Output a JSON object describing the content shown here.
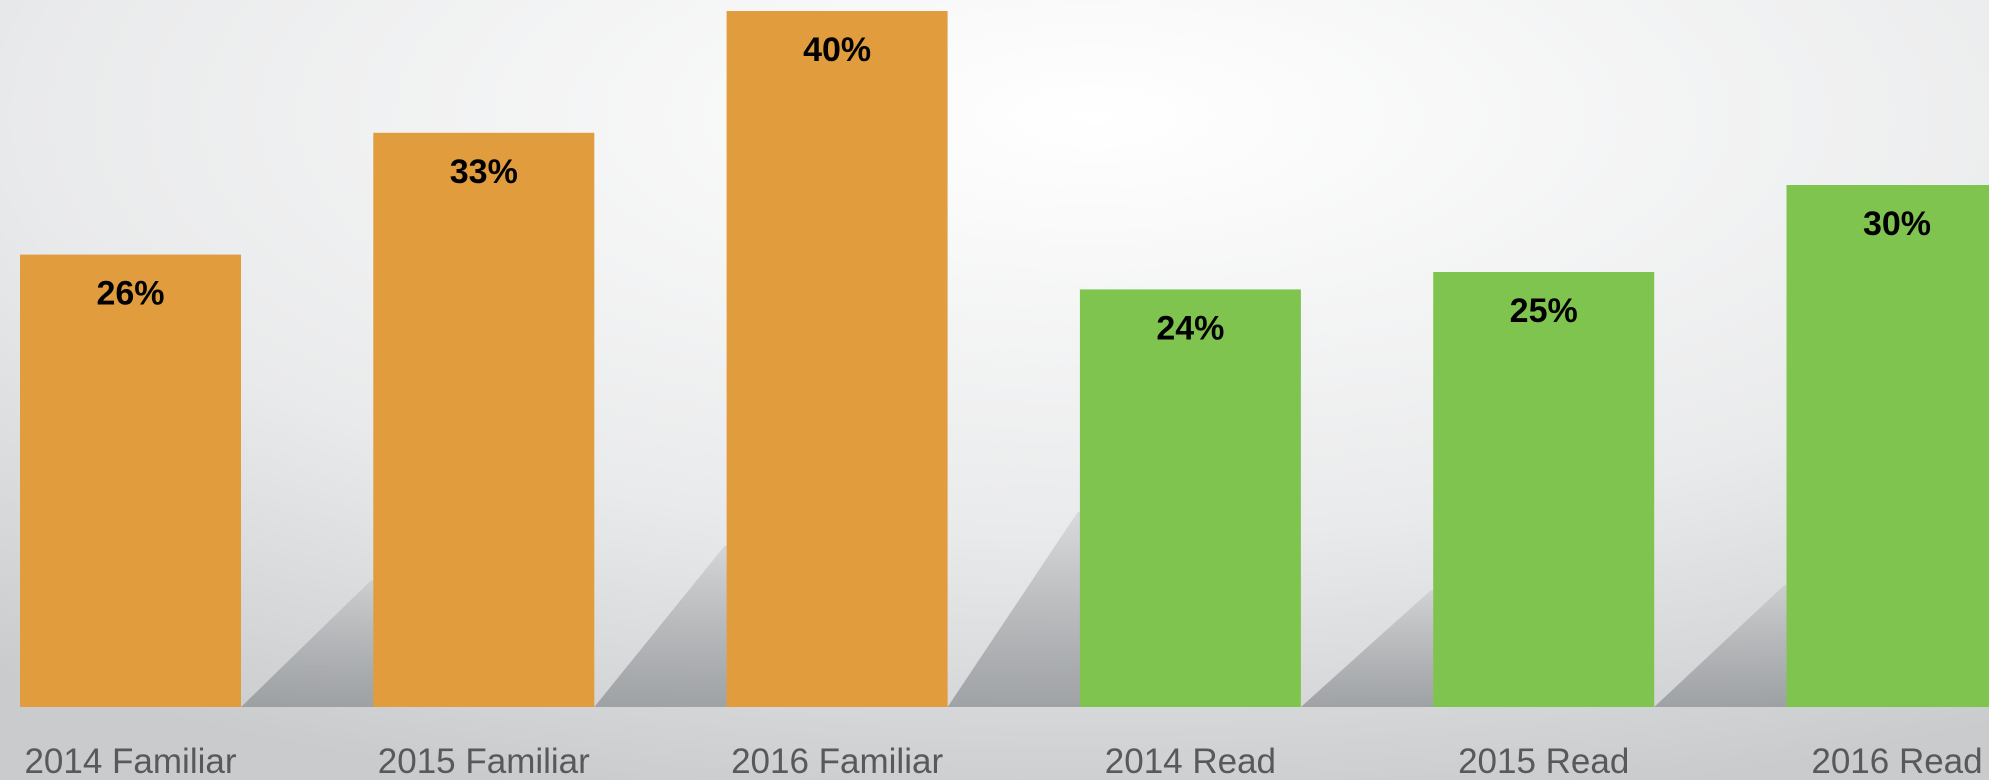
{
  "chart_data": {
    "type": "bar",
    "categories": [
      "2014 Familiar",
      "2015 Familiar",
      "2016 Familiar",
      "2014 Read",
      "2015 Read",
      "2016 Read"
    ],
    "values": [
      26,
      33,
      40,
      24,
      25,
      30
    ],
    "value_labels": [
      "26%",
      "33%",
      "40%",
      "24%",
      "25%",
      "30%"
    ],
    "colors": [
      "#e19c3e",
      "#e19c3e",
      "#e19c3e",
      "#80c450",
      "#80c450",
      "#80c450"
    ],
    "ylim": [
      0,
      40
    ]
  }
}
